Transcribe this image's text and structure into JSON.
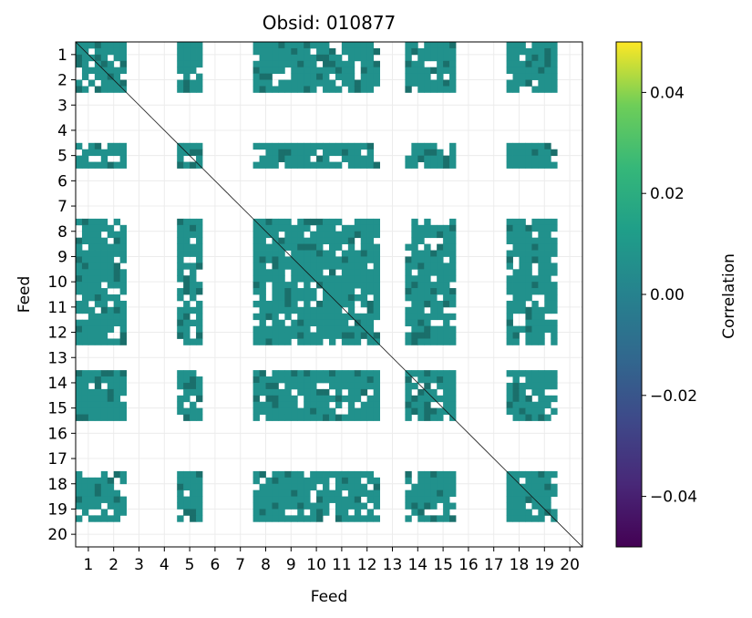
{
  "chart_data": {
    "type": "heatmap",
    "title": "Obsid: 010877",
    "xlabel": "Feed",
    "ylabel": "Feed",
    "x_tick_labels": [
      "1",
      "2",
      "3",
      "4",
      "5",
      "6",
      "7",
      "8",
      "9",
      "10",
      "11",
      "12",
      "13",
      "14",
      "15",
      "16",
      "17",
      "18",
      "19",
      "20"
    ],
    "y_tick_labels": [
      "1",
      "2",
      "3",
      "4",
      "5",
      "6",
      "7",
      "8",
      "9",
      "10",
      "11",
      "12",
      "13",
      "14",
      "15",
      "16",
      "17",
      "18",
      "19",
      "20"
    ],
    "grid": true,
    "colorbar": {
      "label": "Correlation",
      "range": [
        -0.05,
        0.05
      ],
      "ticks": [
        0.04,
        0.02,
        0.0,
        -0.02,
        -0.04
      ],
      "tick_labels": [
        "0.04",
        "0.02",
        "0.00",
        "−0.02",
        "−0.04"
      ],
      "colormap": "viridis"
    },
    "active_feeds": [
      1,
      2,
      5,
      8,
      9,
      10,
      11,
      12,
      14,
      15,
      18,
      19
    ],
    "empty_feeds": [
      3,
      4,
      6,
      7,
      13,
      16,
      17,
      20
    ],
    "bands_per_feed": 4,
    "typical_value": 0.0,
    "diagonal_value": "NaN"
  },
  "colors": {
    "fill": "#21918c",
    "fill_dark": "#1a6f6b",
    "grid": "#ececec"
  }
}
